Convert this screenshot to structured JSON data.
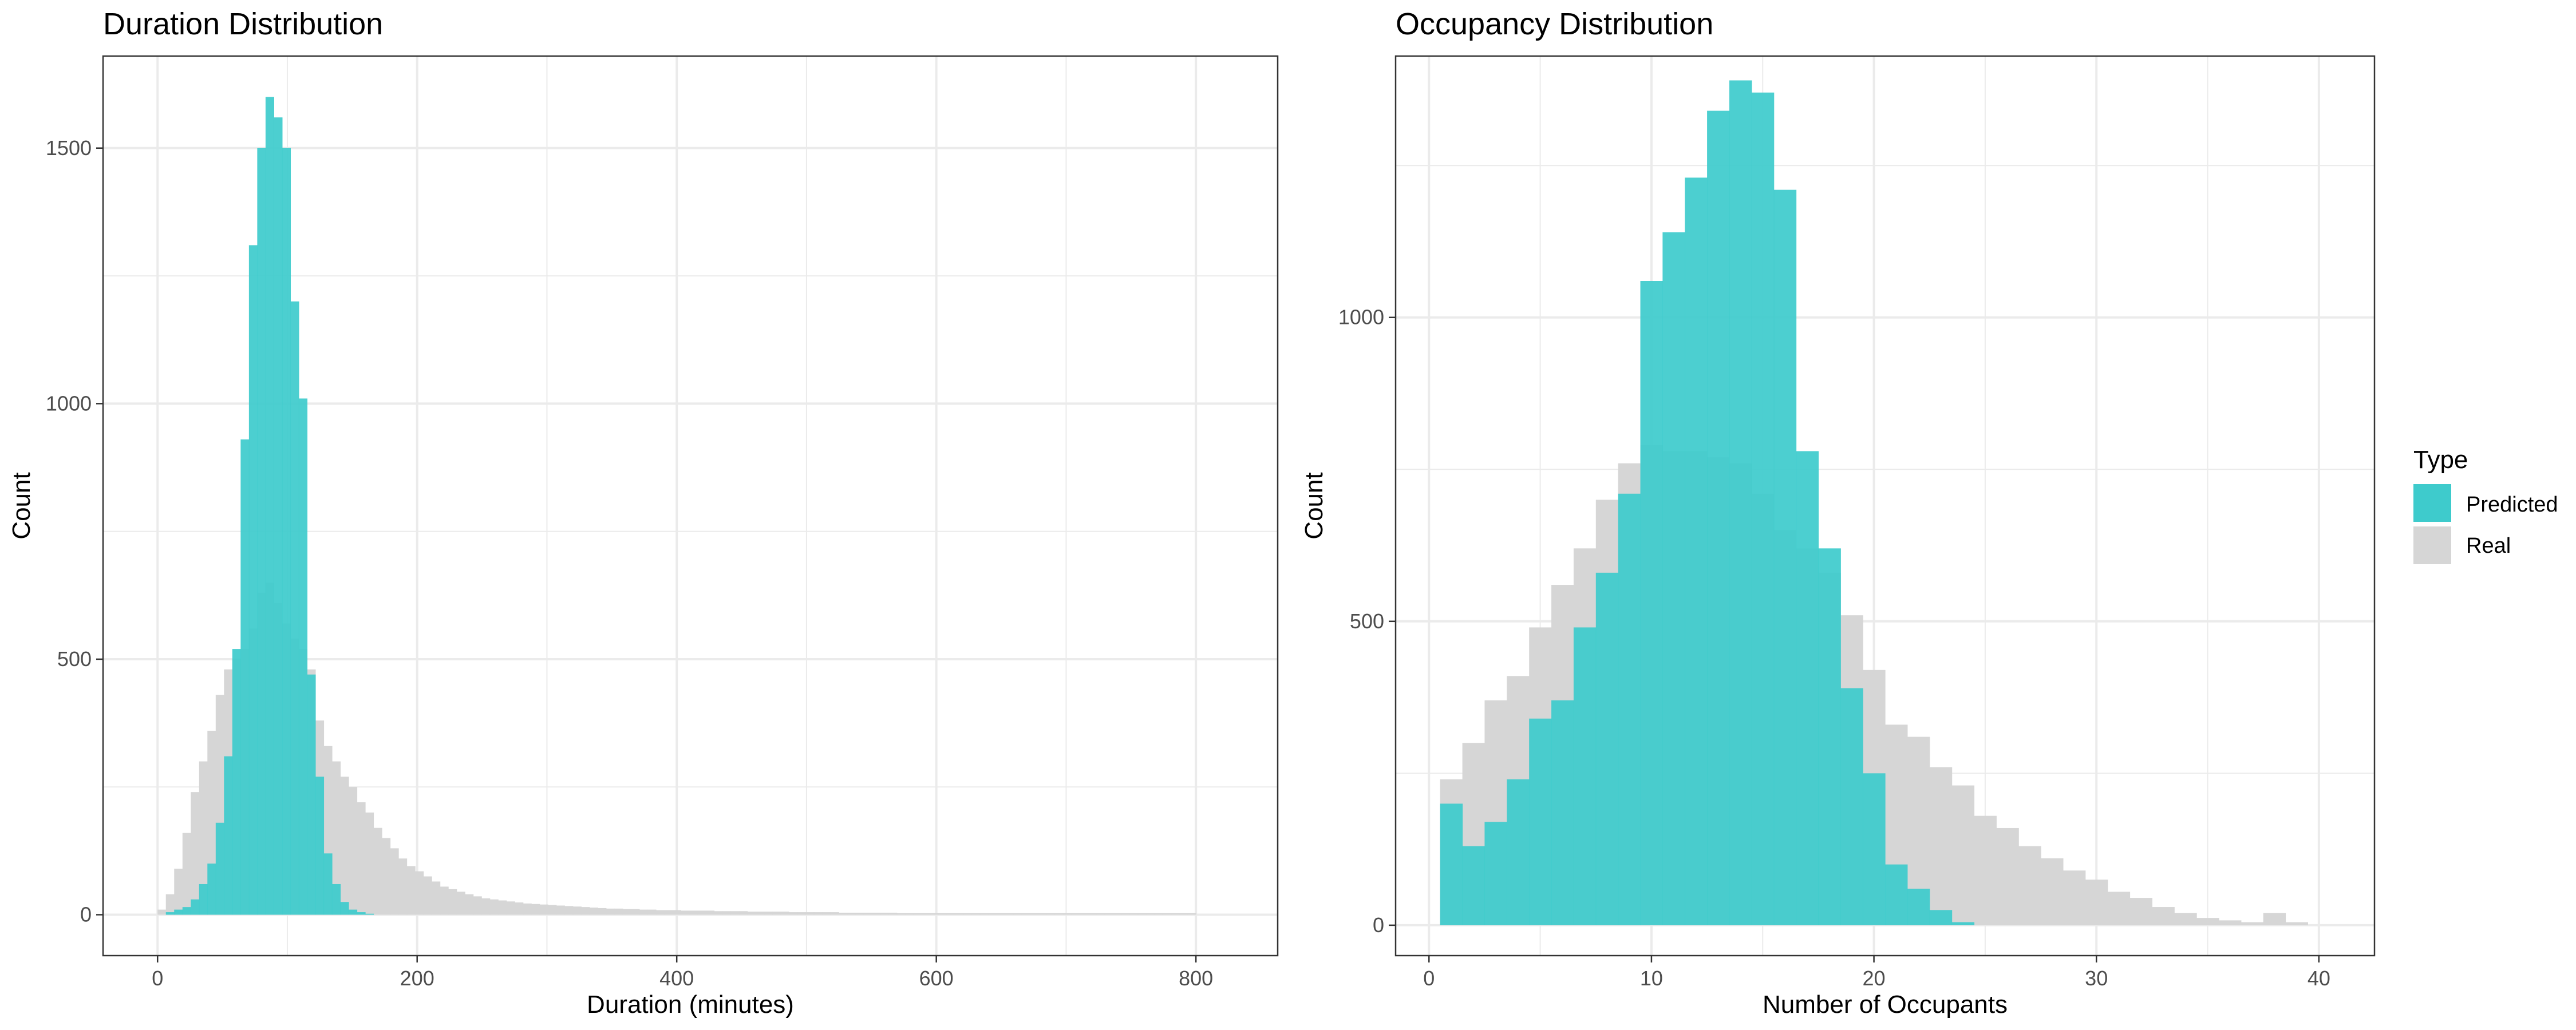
{
  "colors": {
    "predicted": "#3ecbcc",
    "real": "#d6d6d6",
    "panel_border": "#333333",
    "grid": "#ebebeb"
  },
  "legend": {
    "title": "Type",
    "items": [
      {
        "label": "Predicted",
        "color": "#3ecbcc"
      },
      {
        "label": "Real",
        "color": "#d6d6d6"
      }
    ]
  },
  "chart_data": [
    {
      "type": "histogram",
      "title": "Duration Distribution",
      "xlabel": "Duration (minutes)",
      "ylabel": "Count",
      "xlim": [
        -42,
        863
      ],
      "ylim": [
        -80,
        1680
      ],
      "x_ticks": [
        0,
        200,
        400,
        600,
        800
      ],
      "y_ticks": [
        0,
        500,
        1000,
        1500
      ],
      "grid": true,
      "series": [
        {
          "name": "Real",
          "bin_start": 0,
          "bin_width": 6.4,
          "counts": [
            10,
            40,
            90,
            160,
            240,
            300,
            360,
            430,
            480,
            500,
            520,
            560,
            630,
            650,
            610,
            570,
            540,
            520,
            480,
            380,
            330,
            300,
            270,
            250,
            220,
            200,
            170,
            150,
            130,
            110,
            95,
            85,
            75,
            65,
            55,
            50,
            45,
            40,
            36,
            32,
            30,
            28,
            26,
            24,
            22,
            21,
            20,
            19,
            18,
            17,
            16,
            15,
            14,
            13,
            12,
            12,
            11,
            11,
            10,
            10,
            9,
            9,
            9,
            8,
            8,
            8,
            8,
            7,
            7,
            7,
            7,
            6,
            6,
            6,
            6,
            6,
            5,
            5,
            5,
            5,
            5,
            5,
            4,
            4,
            4,
            4,
            4,
            4,
            4,
            3,
            3,
            3,
            3,
            3,
            3,
            3,
            3,
            3,
            3,
            3,
            3,
            3,
            3,
            3,
            3,
            3,
            3,
            3,
            3,
            3,
            3,
            3,
            3,
            3,
            3,
            3,
            3,
            3,
            3,
            3,
            3,
            3,
            3,
            3,
            3
          ]
        },
        {
          "name": "Predicted",
          "bin_start": 0,
          "bin_width": 6.4,
          "counts": [
            0,
            5,
            10,
            15,
            30,
            60,
            100,
            180,
            310,
            520,
            930,
            1310,
            1500,
            1600,
            1560,
            1500,
            1200,
            1010,
            470,
            270,
            120,
            60,
            25,
            10,
            5,
            2
          ]
        }
      ]
    },
    {
      "type": "histogram",
      "title": "Occupancy Distribution",
      "xlabel": "Number of Occupants",
      "ylabel": "Count",
      "xlim": [
        -1.5,
        42.5
      ],
      "ylim": [
        -50,
        1430
      ],
      "x_ticks": [
        0,
        10,
        20,
        30,
        40
      ],
      "y_ticks": [
        0,
        500,
        1000
      ],
      "grid": true,
      "series": [
        {
          "name": "Real",
          "bin_start": 0.5,
          "bin_width": 1,
          "counts": [
            240,
            300,
            370,
            410,
            490,
            560,
            620,
            700,
            760,
            790,
            780,
            780,
            770,
            760,
            710,
            650,
            620,
            580,
            510,
            420,
            330,
            310,
            260,
            230,
            180,
            160,
            130,
            110,
            90,
            75,
            55,
            45,
            30,
            20,
            12,
            8,
            5,
            20,
            5
          ]
        },
        {
          "name": "Predicted",
          "bin_start": 0.5,
          "bin_width": 1,
          "counts": [
            200,
            130,
            170,
            240,
            340,
            370,
            490,
            580,
            710,
            1060,
            1140,
            1230,
            1340,
            1390,
            1370,
            1210,
            780,
            620,
            390,
            250,
            100,
            60,
            25,
            5
          ]
        }
      ]
    }
  ]
}
